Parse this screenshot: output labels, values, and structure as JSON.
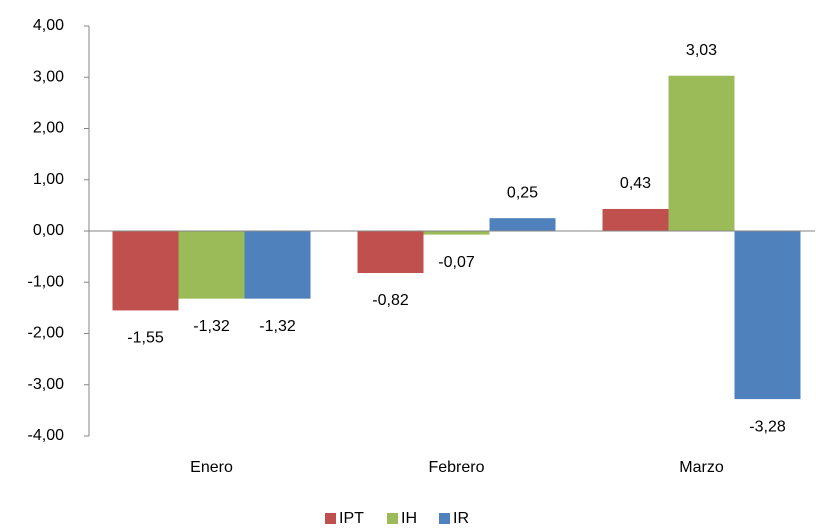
{
  "chart_data": {
    "type": "bar",
    "categories": [
      "Enero",
      "Febrero",
      "Marzo"
    ],
    "series": [
      {
        "name": "IPT",
        "color": "#c0504d",
        "values": [
          -1.55,
          -0.82,
          0.43
        ],
        "value_labels": [
          "-1,55",
          "-0,82",
          "0,43"
        ]
      },
      {
        "name": "IH",
        "color": "#9bbb59",
        "values": [
          -1.32,
          -0.07,
          3.03
        ],
        "value_labels": [
          "-1,32",
          "-0,07",
          "3,03"
        ]
      },
      {
        "name": "IR",
        "color": "#4f81bd",
        "values": [
          -1.32,
          0.25,
          -3.28
        ],
        "value_labels": [
          "-1,32",
          "0,25",
          "-3,28"
        ]
      }
    ],
    "ylim": [
      -4,
      4
    ],
    "yticks": [
      {
        "value": -4,
        "label": "-4,00"
      },
      {
        "value": -3,
        "label": "-3,00"
      },
      {
        "value": -2,
        "label": "-2,00"
      },
      {
        "value": -1,
        "label": "-1,00"
      },
      {
        "value": 0,
        "label": "0,00"
      },
      {
        "value": 1,
        "label": "1,00"
      },
      {
        "value": 2,
        "label": "2,00"
      },
      {
        "value": 3,
        "label": "3,00"
      },
      {
        "value": 4,
        "label": "4,00"
      }
    ],
    "grid": false,
    "legend": "bottom"
  }
}
